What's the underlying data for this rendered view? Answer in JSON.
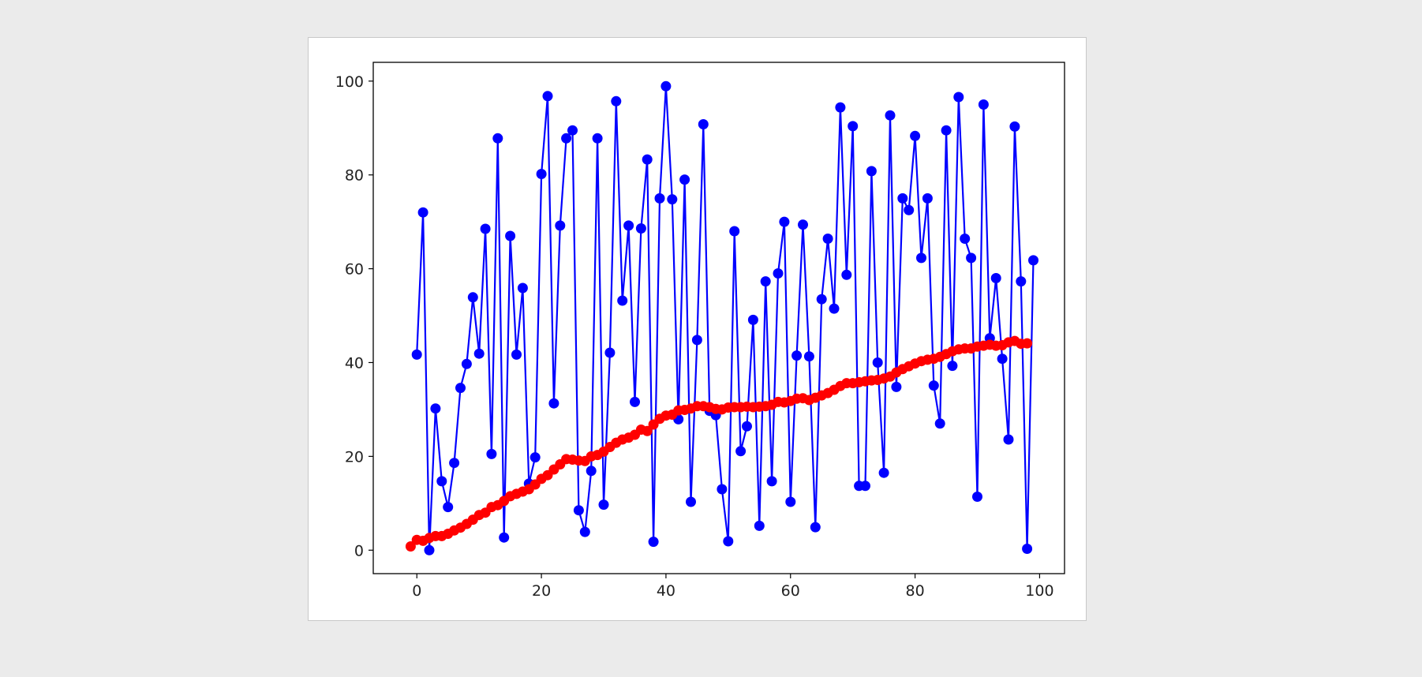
{
  "colors": {
    "background": "#ebebeb",
    "figure": "#ffffff",
    "series_raw": "#0000ff",
    "series_mean": "#ff0000"
  },
  "chart_data": {
    "type": "line",
    "title": "",
    "xlabel": "",
    "ylabel": "",
    "xlim": [
      -7,
      104
    ],
    "ylim": [
      -5,
      104
    ],
    "xticks": [
      "0",
      "20",
      "40",
      "60",
      "80",
      "100"
    ],
    "yticks": [
      "0",
      "20",
      "40",
      "60",
      "80",
      "100"
    ],
    "grid": false,
    "legend": "none",
    "series": [
      {
        "color": "#0000ff",
        "marker": "circle",
        "x": [
          0,
          1,
          2,
          3,
          4,
          5,
          6,
          7,
          8,
          9,
          10,
          11,
          12,
          13,
          14,
          15,
          16,
          17,
          18,
          19,
          20,
          21,
          22,
          23,
          24,
          25,
          26,
          27,
          28,
          29,
          30,
          31,
          32,
          33,
          34,
          35,
          36,
          37,
          38,
          39,
          40,
          41,
          42,
          43,
          44,
          45,
          46,
          47,
          48,
          49,
          50,
          51,
          52,
          53,
          54,
          55,
          56,
          57,
          58,
          59,
          60,
          61,
          62,
          63,
          64,
          65,
          66,
          67,
          68,
          69,
          70,
          71,
          72,
          73,
          74,
          75,
          76,
          77,
          78,
          79,
          80,
          81,
          82,
          83,
          84,
          85,
          86,
          87,
          88,
          89,
          90,
          91,
          92,
          93,
          94,
          95,
          96,
          97,
          98,
          99
        ],
        "values": [
          41.7,
          72.0,
          0.0,
          30.2,
          14.7,
          9.2,
          18.6,
          34.6,
          39.7,
          53.9,
          41.9,
          68.5,
          20.5,
          87.8,
          2.7,
          67.0,
          41.7,
          55.9,
          14.2,
          19.8,
          80.2,
          96.8,
          31.3,
          69.2,
          87.8,
          89.5,
          8.5,
          3.9,
          16.9,
          87.8,
          9.7,
          42.1,
          95.7,
          53.2,
          69.2,
          31.6,
          68.6,
          83.3,
          1.8,
          75.0,
          98.9,
          74.8,
          27.9,
          79.0,
          10.3,
          44.8,
          90.8,
          29.7,
          28.8,
          13.0,
          1.9,
          68.0,
          21.1,
          26.4,
          49.1,
          5.2,
          57.3,
          14.7,
          59.0,
          70.0,
          10.3,
          41.5,
          69.4,
          41.3,
          4.9,
          53.5,
          66.4,
          51.5,
          94.4,
          58.7,
          90.4,
          13.7,
          13.7,
          80.8,
          40.0,
          16.5,
          92.7,
          34.8,
          75.0,
          72.5,
          88.3,
          62.3,
          75.0,
          35.1,
          27.0,
          89.5,
          39.3,
          96.6,
          66.4,
          62.3,
          11.4,
          95.0,
          45.2,
          58.0,
          40.8,
          23.6,
          90.3,
          57.3,
          0.3,
          61.8
        ]
      },
      {
        "color": "#ff0000",
        "marker": "circle",
        "x": [
          -1,
          0,
          1,
          2,
          3,
          4,
          5,
          6,
          7,
          8,
          9,
          10,
          11,
          12,
          13,
          14,
          15,
          16,
          17,
          18,
          19,
          20,
          21,
          22,
          23,
          24,
          25,
          26,
          27,
          28,
          29,
          30,
          31,
          32,
          33,
          34,
          35,
          36,
          37,
          38,
          39,
          40,
          41,
          42,
          43,
          44,
          45,
          46,
          47,
          48,
          49,
          50,
          51,
          52,
          53,
          54,
          55,
          56,
          57,
          58,
          59,
          60,
          61,
          62,
          63,
          64,
          65,
          66,
          67,
          68,
          69,
          70,
          71,
          72,
          73,
          74,
          75,
          76,
          77,
          78,
          79,
          80,
          81,
          82,
          83,
          84,
          85,
          86,
          87,
          88,
          89,
          90,
          91,
          92,
          93,
          94,
          95,
          96,
          97,
          98
        ],
        "values": [
          0.8,
          2.2,
          2.0,
          2.6,
          3.0,
          3.0,
          3.5,
          4.2,
          4.8,
          5.6,
          6.5,
          7.5,
          8.0,
          9.2,
          9.6,
          10.5,
          11.5,
          12.0,
          12.5,
          13.0,
          14.0,
          15.2,
          16.0,
          17.2,
          18.3,
          19.4,
          19.3,
          19.1,
          19.0,
          20.0,
          20.3,
          21.0,
          22.0,
          22.9,
          23.6,
          24.0,
          24.6,
          25.7,
          25.4,
          26.8,
          28.0,
          28.7,
          28.9,
          29.8,
          29.9,
          30.2,
          30.7,
          30.7,
          30.5,
          30.1,
          30.0,
          30.4,
          30.5,
          30.5,
          30.6,
          30.5,
          30.6,
          30.7,
          31.0,
          31.6,
          31.5,
          31.8,
          32.3,
          32.4,
          32.0,
          32.5,
          33.0,
          33.5,
          34.2,
          35.0,
          35.6,
          35.6,
          35.8,
          36.0,
          36.2,
          36.3,
          36.6,
          37.0,
          37.9,
          38.6,
          39.2,
          39.8,
          40.3,
          40.6,
          40.8,
          41.2,
          41.8,
          42.4,
          42.8,
          43.0,
          43.0,
          43.4,
          43.6,
          43.8,
          43.6,
          43.7,
          44.3,
          44.6,
          44.0,
          44.1
        ]
      }
    ]
  }
}
